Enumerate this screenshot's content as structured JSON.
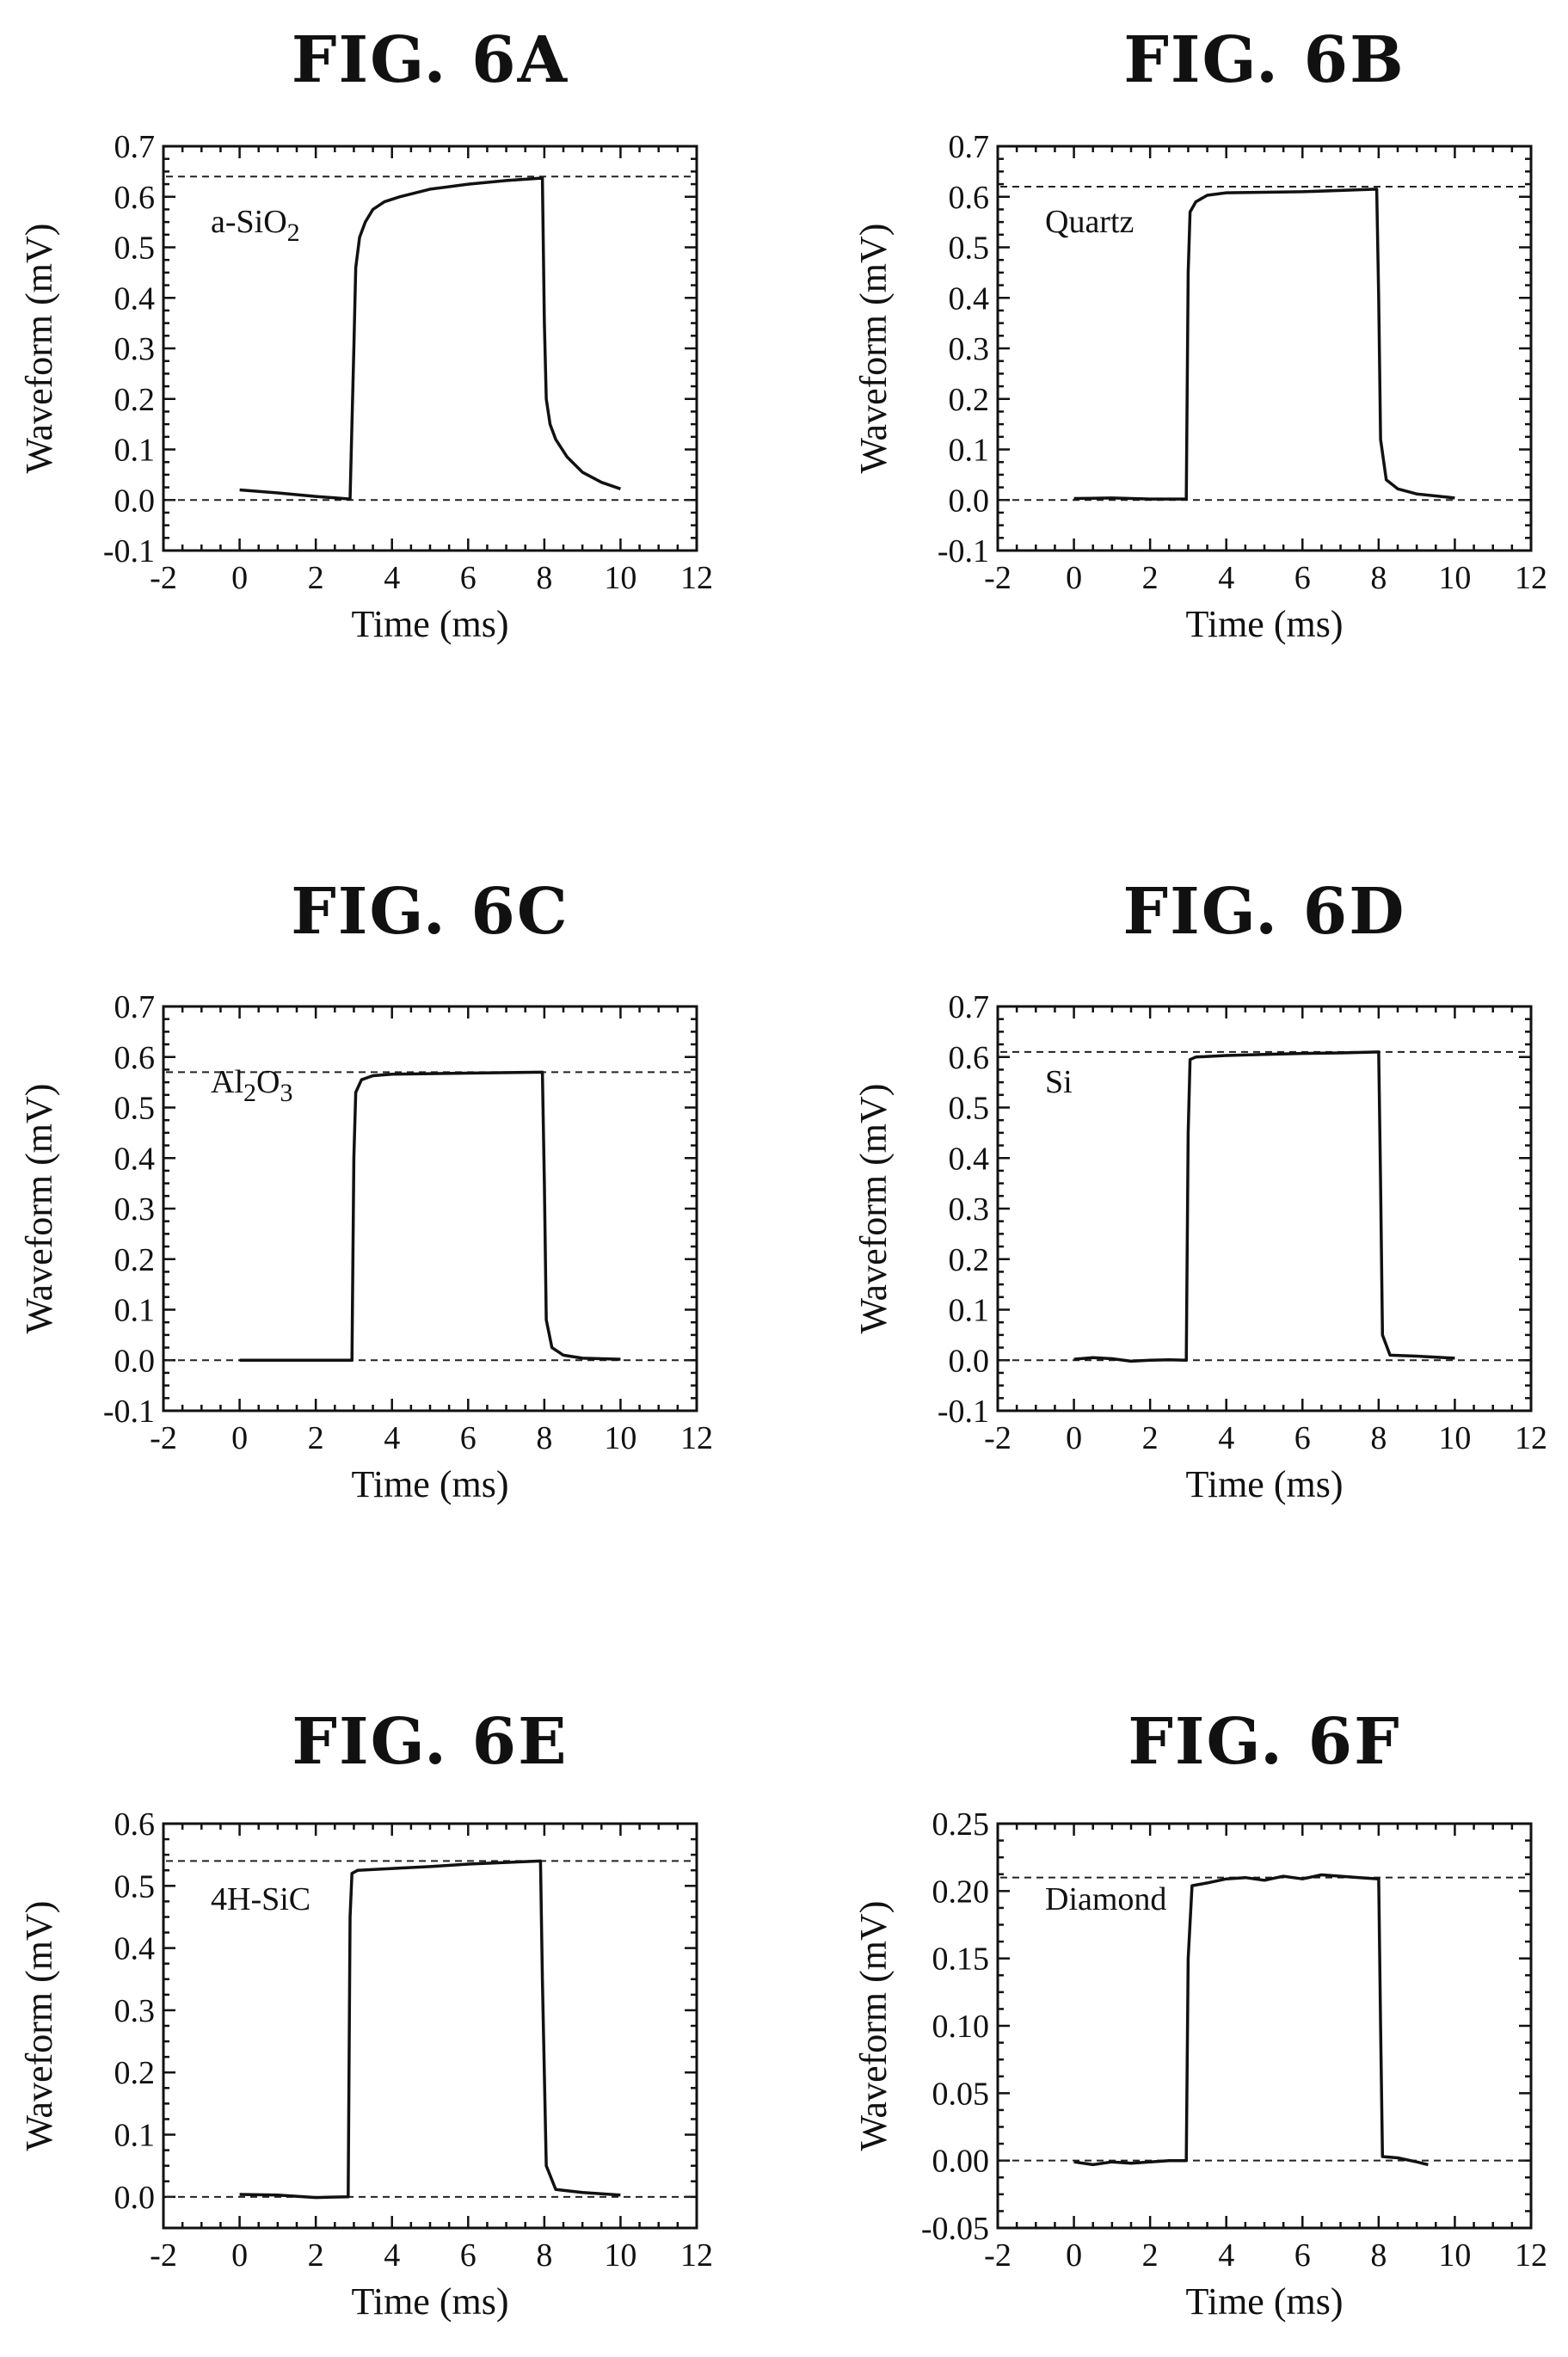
{
  "chart_data": [
    {
      "type": "line",
      "title": "FIG. 6A",
      "label": "a-SiO",
      "label_sub": "2",
      "label_tail": "",
      "xlabel": "Time (ms)",
      "ylabel": "Waveform (mV)",
      "xlim": [
        -2,
        12
      ],
      "ylim": [
        -0.1,
        0.7
      ],
      "xticks": [
        "-2",
        "0",
        "2",
        "4",
        "6",
        "8",
        "10",
        "12"
      ],
      "yticks": [
        "-0.1",
        "0.0",
        "0.1",
        "0.2",
        "0.3",
        "0.4",
        "0.5",
        "0.6",
        "0.7"
      ],
      "reference_lines": [
        0.0,
        0.64
      ],
      "x": [
        0,
        1,
        2,
        2.9,
        3.0,
        3.05,
        3.15,
        3.3,
        3.5,
        3.8,
        4.2,
        5,
        6,
        7,
        7.95,
        8.0,
        8.05,
        8.15,
        8.3,
        8.6,
        9.0,
        9.5,
        10.0
      ],
      "y": [
        0.02,
        0.014,
        0.007,
        0.002,
        0.3,
        0.46,
        0.52,
        0.55,
        0.575,
        0.59,
        0.6,
        0.615,
        0.625,
        0.632,
        0.637,
        0.35,
        0.2,
        0.15,
        0.12,
        0.085,
        0.055,
        0.035,
        0.022
      ]
    },
    {
      "type": "line",
      "title": "FIG. 6B",
      "label": "Quartz",
      "label_sub": "",
      "label_tail": "",
      "xlabel": "Time (ms)",
      "ylabel": "Waveform (mV)",
      "xlim": [
        -2,
        12
      ],
      "ylim": [
        -0.1,
        0.7
      ],
      "xticks": [
        "-2",
        "0",
        "2",
        "4",
        "6",
        "8",
        "10",
        "12"
      ],
      "yticks": [
        "-0.1",
        "0.0",
        "0.1",
        "0.2",
        "0.3",
        "0.4",
        "0.5",
        "0.6",
        "0.7"
      ],
      "reference_lines": [
        0.0,
        0.62
      ],
      "x": [
        0,
        1,
        2,
        2.95,
        3.0,
        3.05,
        3.2,
        3.5,
        4,
        6,
        7.95,
        8.0,
        8.05,
        8.2,
        8.5,
        9,
        10
      ],
      "y": [
        0.003,
        0.004,
        0.002,
        0.002,
        0.45,
        0.57,
        0.59,
        0.603,
        0.608,
        0.61,
        0.615,
        0.4,
        0.12,
        0.04,
        0.022,
        0.012,
        0.004
      ]
    },
    {
      "type": "line",
      "title": "FIG. 6C",
      "label": "Al",
      "label_sub": "2",
      "label_tail": "O",
      "label_tail_sub": "3",
      "xlabel": "Time (ms)",
      "ylabel": "Waveform (mV)",
      "xlim": [
        -2,
        12
      ],
      "ylim": [
        -0.1,
        0.7
      ],
      "xticks": [
        "-2",
        "0",
        "2",
        "4",
        "6",
        "8",
        "10",
        "12"
      ],
      "yticks": [
        "-0.1",
        "0.0",
        "0.1",
        "0.2",
        "0.3",
        "0.4",
        "0.5",
        "0.6",
        "0.7"
      ],
      "reference_lines": [
        0.0,
        0.57
      ],
      "x": [
        0,
        1,
        2,
        2.95,
        3.0,
        3.05,
        3.2,
        3.5,
        4,
        6,
        7.95,
        8.0,
        8.05,
        8.2,
        8.5,
        9,
        10
      ],
      "y": [
        0.0,
        0.0,
        0.0,
        0.0,
        0.4,
        0.53,
        0.555,
        0.563,
        0.566,
        0.568,
        0.57,
        0.35,
        0.08,
        0.025,
        0.01,
        0.004,
        0.002
      ]
    },
    {
      "type": "line",
      "title": "FIG. 6D",
      "label": "Si",
      "label_sub": "",
      "label_tail": "",
      "xlabel": "Time (ms)",
      "ylabel": "Waveform (mV)",
      "xlim": [
        -2,
        12
      ],
      "ylim": [
        -0.1,
        0.7
      ],
      "xticks": [
        "-2",
        "0",
        "2",
        "4",
        "6",
        "8",
        "10",
        "12"
      ],
      "yticks": [
        "-0.1",
        "0.0",
        "0.1",
        "0.2",
        "0.3",
        "0.4",
        "0.5",
        "0.6",
        "0.7"
      ],
      "reference_lines": [
        0.0,
        0.61
      ],
      "x": [
        0,
        0.5,
        1,
        1.5,
        2,
        2.5,
        2.95,
        3.0,
        3.05,
        3.2,
        4,
        5,
        6,
        7,
        8.0,
        8.05,
        8.1,
        8.3,
        9,
        10
      ],
      "y": [
        0.002,
        0.005,
        0.003,
        -0.002,
        0.0,
        0.001,
        0.0,
        0.45,
        0.595,
        0.6,
        0.603,
        0.605,
        0.607,
        0.608,
        0.61,
        0.35,
        0.05,
        0.01,
        0.008,
        0.004
      ]
    },
    {
      "type": "line",
      "title": "FIG. 6E",
      "label": "4H-SiC",
      "label_sub": "",
      "label_tail": "",
      "xlabel": "Time (ms)",
      "ylabel": "Waveform (mV)",
      "xlim": [
        -2,
        12
      ],
      "ylim": [
        -0.05,
        0.6
      ],
      "xticks": [
        "-2",
        "0",
        "2",
        "4",
        "6",
        "8",
        "10",
        "12"
      ],
      "yticks": [
        "0.0",
        "0.1",
        "0.2",
        "0.3",
        "0.4",
        "0.5",
        "0.6"
      ],
      "reference_lines": [
        0.0,
        0.54
      ],
      "x": [
        0,
        1,
        2,
        2.85,
        2.9,
        2.95,
        3.1,
        4,
        5,
        6,
        7.9,
        7.95,
        8.05,
        8.3,
        9,
        10
      ],
      "y": [
        0.004,
        0.003,
        -0.001,
        0.0,
        0.45,
        0.52,
        0.525,
        0.528,
        0.531,
        0.535,
        0.54,
        0.35,
        0.05,
        0.012,
        0.007,
        0.003
      ]
    },
    {
      "type": "line",
      "title": "FIG. 6F",
      "label": "Diamond",
      "label_sub": "",
      "label_tail": "",
      "xlabel": "Time (ms)",
      "ylabel": "Waveform (mV)",
      "xlim": [
        -2,
        12
      ],
      "ylim": [
        -0.05,
        0.25
      ],
      "xticks": [
        "-2",
        "0",
        "2",
        "4",
        "6",
        "8",
        "10",
        "12"
      ],
      "yticks": [
        "-0.05",
        "0.00",
        "0.05",
        "0.10",
        "0.15",
        "0.20",
        "0.25"
      ],
      "reference_lines": [
        0.0,
        0.21
      ],
      "x": [
        0,
        0.5,
        1,
        1.5,
        2,
        2.5,
        2.95,
        3.0,
        3.1,
        3.5,
        4,
        4.5,
        5,
        5.5,
        6,
        6.5,
        7,
        7.5,
        8.0,
        8.05,
        8.1,
        8.5,
        9,
        9.3
      ],
      "y": [
        -0.001,
        -0.003,
        -0.001,
        -0.002,
        -0.001,
        0.0,
        0.0,
        0.15,
        0.204,
        0.206,
        0.209,
        0.21,
        0.208,
        0.211,
        0.209,
        0.212,
        0.211,
        0.21,
        0.209,
        0.1,
        0.003,
        0.002,
        -0.001,
        -0.003
      ]
    }
  ]
}
